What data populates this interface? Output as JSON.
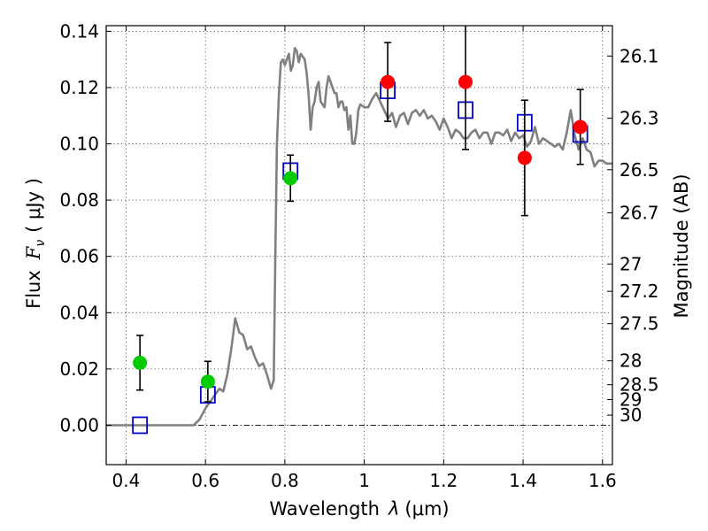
{
  "chart_data": {
    "type": "scatter",
    "xlabel_prefix": "Wavelength",
    "xlabel_symbol": "λ",
    "xlabel_unit": "(μm)",
    "ylabel_prefix": "Flux",
    "ylabel_symbol": "F",
    "ylabel_subscript": "ν",
    "ylabel_unit": "( μJy )",
    "y2label": "Magnitude (AB)",
    "xlim": [
      0.35,
      1.625
    ],
    "ylim": [
      -0.014,
      0.142
    ],
    "x_ticks": [
      0.4,
      0.6,
      0.8,
      1.0,
      1.2,
      1.4,
      1.6
    ],
    "x_tick_labels": [
      "0.4",
      "0.6",
      "0.8",
      "1",
      "1.2",
      "1.4",
      "1.6"
    ],
    "y_ticks": [
      0.0,
      0.02,
      0.04,
      0.06,
      0.08,
      0.1,
      0.12,
      0.14
    ],
    "y_tick_labels": [
      "0.00",
      "0.02",
      "0.04",
      "0.06",
      "0.08",
      "0.10",
      "0.12",
      "0.14"
    ],
    "mag_ticks": [
      {
        "label": "26.1",
        "flux": 0.1312
      },
      {
        "label": "26.3",
        "flux": 0.1091
      },
      {
        "label": "26.5",
        "flux": 0.0908
      },
      {
        "label": "26.7",
        "flux": 0.0755
      },
      {
        "label": "27",
        "flux": 0.0573
      },
      {
        "label": "27.2",
        "flux": 0.0476
      },
      {
        "label": "27.5",
        "flux": 0.0361
      },
      {
        "label": "28",
        "flux": 0.0229
      },
      {
        "label": "28.5",
        "flux": 0.0144
      },
      {
        "label": "29",
        "flux": 0.0091
      },
      {
        "label": "30",
        "flux": 0.0036
      }
    ],
    "series": [
      {
        "name": "spectrum",
        "kind": "line",
        "color": "#808080",
        "x": [
          0.35,
          0.4,
          0.45,
          0.5,
          0.55,
          0.57,
          0.585,
          0.6,
          0.62,
          0.635,
          0.645,
          0.655,
          0.665,
          0.675,
          0.685,
          0.695,
          0.705,
          0.715,
          0.725,
          0.735,
          0.745,
          0.755,
          0.765,
          0.772,
          0.776,
          0.78,
          0.785,
          0.79,
          0.795,
          0.8,
          0.81,
          0.815,
          0.82,
          0.825,
          0.83,
          0.835,
          0.84,
          0.845,
          0.85,
          0.855,
          0.86,
          0.865,
          0.87,
          0.875,
          0.88,
          0.885,
          0.89,
          0.9,
          0.905,
          0.91,
          0.915,
          0.92,
          0.925,
          0.93,
          0.935,
          0.94,
          0.945,
          0.95,
          0.955,
          0.96,
          0.965,
          0.97,
          0.975,
          0.98,
          0.985,
          0.99,
          1.0,
          1.01,
          1.02,
          1.03,
          1.04,
          1.05,
          1.06,
          1.07,
          1.08,
          1.09,
          1.1,
          1.11,
          1.12,
          1.13,
          1.14,
          1.15,
          1.16,
          1.17,
          1.18,
          1.19,
          1.2,
          1.21,
          1.22,
          1.23,
          1.24,
          1.25,
          1.26,
          1.27,
          1.28,
          1.29,
          1.3,
          1.31,
          1.32,
          1.33,
          1.34,
          1.35,
          1.36,
          1.37,
          1.38,
          1.39,
          1.4,
          1.41,
          1.42,
          1.43,
          1.44,
          1.45,
          1.46,
          1.47,
          1.48,
          1.49,
          1.5,
          1.51,
          1.52,
          1.53,
          1.54,
          1.55,
          1.56,
          1.57,
          1.58,
          1.59,
          1.6,
          1.61,
          1.625
        ],
        "y": [
          0.0,
          0.0,
          0.0,
          0.0,
          0.0,
          0.0,
          0.002,
          0.006,
          0.01,
          0.013,
          0.012,
          0.018,
          0.027,
          0.038,
          0.033,
          0.032,
          0.027,
          0.028,
          0.024,
          0.021,
          0.022,
          0.018,
          0.013,
          0.016,
          0.06,
          0.1,
          0.118,
          0.129,
          0.13,
          0.128,
          0.132,
          0.126,
          0.128,
          0.134,
          0.133,
          0.129,
          0.132,
          0.131,
          0.13,
          0.125,
          0.117,
          0.105,
          0.113,
          0.115,
          0.12,
          0.122,
          0.115,
          0.113,
          0.12,
          0.124,
          0.122,
          0.12,
          0.118,
          0.118,
          0.113,
          0.115,
          0.115,
          0.112,
          0.113,
          0.105,
          0.11,
          0.1,
          0.1,
          0.104,
          0.112,
          0.114,
          0.113,
          0.113,
          0.116,
          0.118,
          0.115,
          0.112,
          0.109,
          0.111,
          0.106,
          0.11,
          0.111,
          0.107,
          0.111,
          0.112,
          0.11,
          0.112,
          0.109,
          0.11,
          0.108,
          0.105,
          0.109,
          0.106,
          0.102,
          0.105,
          0.104,
          0.102,
          0.102,
          0.104,
          0.105,
          0.102,
          0.104,
          0.104,
          0.1,
          0.104,
          0.104,
          0.103,
          0.105,
          0.101,
          0.104,
          0.102,
          0.103,
          0.099,
          0.101,
          0.106,
          0.1,
          0.102,
          0.101,
          0.1,
          0.099,
          0.1,
          0.098,
          0.104,
          0.112,
          0.103,
          0.098,
          0.102,
          0.098,
          0.097,
          0.092,
          0.094,
          0.094,
          0.093,
          0.093
        ]
      },
      {
        "name": "model photometry",
        "kind": "open-square",
        "color": "#0000cc",
        "x": [
          0.435,
          0.606,
          0.814,
          1.059,
          1.255,
          1.404,
          1.544
        ],
        "y": [
          0.0,
          0.0108,
          0.0903,
          0.119,
          0.112,
          0.1075,
          0.1035
        ]
      },
      {
        "name": "observed (green)",
        "kind": "filled-circle",
        "color": "#00cc00",
        "x": [
          0.435,
          0.606,
          0.814
        ],
        "y": [
          0.0222,
          0.0155,
          0.0878
        ],
        "err": [
          0.0097,
          0.0072,
          0.0082
        ]
      },
      {
        "name": "observed (red)",
        "kind": "filled-circle",
        "color": "#ff0000",
        "x": [
          1.059,
          1.255,
          1.404,
          1.544
        ],
        "y": [
          0.122,
          0.122,
          0.095,
          0.106
        ],
        "err": [
          0.014,
          0.024,
          0.0205,
          0.0133
        ]
      }
    ]
  }
}
